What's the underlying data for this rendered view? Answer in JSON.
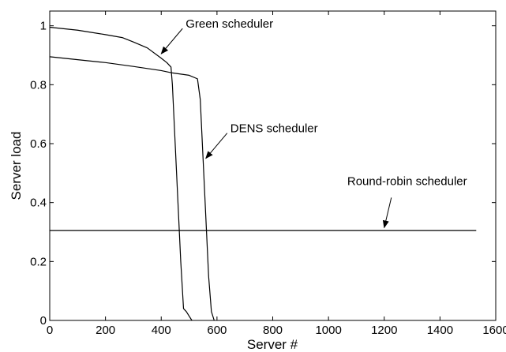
{
  "chart_data": {
    "type": "line",
    "title": "",
    "xlabel": "Server #",
    "ylabel": "Server load",
    "xlim": [
      0,
      1600
    ],
    "ylim": [
      0,
      1.05
    ],
    "xticks": [
      0,
      200,
      400,
      600,
      800,
      1000,
      1200,
      1400,
      1600
    ],
    "xtick_labels": [
      "0",
      "200",
      "400",
      "600",
      "800",
      "1000",
      "1200",
      "1400",
      "1600"
    ],
    "yticks": [
      0,
      0.2,
      0.4,
      0.6,
      0.8,
      1
    ],
    "ytick_labels": [
      "0",
      "0.2",
      "0.4",
      "0.6",
      "0.8",
      "1"
    ],
    "grid": false,
    "legend": "none",
    "color": "#000000",
    "series": [
      {
        "x": [
          0,
          100,
          200,
          260,
          300,
          350,
          400,
          420,
          435,
          440,
          450,
          460,
          470,
          480,
          490,
          500,
          510
        ],
        "y": [
          0.995,
          0.985,
          0.97,
          0.96,
          0.945,
          0.925,
          0.89,
          0.875,
          0.86,
          0.8,
          0.6,
          0.4,
          0.2,
          0.04,
          0.03,
          0.015,
          0.0
        ]
      },
      {
        "x": [
          0,
          100,
          200,
          300,
          400,
          440,
          500,
          530,
          540,
          550,
          560,
          570,
          580,
          590
        ],
        "y": [
          0.895,
          0.885,
          0.875,
          0.862,
          0.848,
          0.84,
          0.832,
          0.82,
          0.75,
          0.55,
          0.35,
          0.15,
          0.03,
          0.0
        ]
      },
      {
        "x": [
          0,
          200,
          400,
          600,
          800,
          1000,
          1200,
          1400,
          1530
        ],
        "y": [
          0.305,
          0.305,
          0.305,
          0.305,
          0.305,
          0.305,
          0.305,
          0.305,
          0.305
        ]
      }
    ],
    "annotations": [
      {
        "text": "Green scheduler",
        "point_x": 400,
        "point_y": 0.905,
        "text_anchor": "arrow-start-right"
      },
      {
        "text": "DENS scheduler",
        "point_x": 560,
        "point_y": 0.55,
        "text_anchor": "arrow-start-right"
      },
      {
        "text": "Round-robin scheduler",
        "point_x": 1200,
        "point_y": 0.315,
        "text_anchor": "above"
      }
    ]
  }
}
